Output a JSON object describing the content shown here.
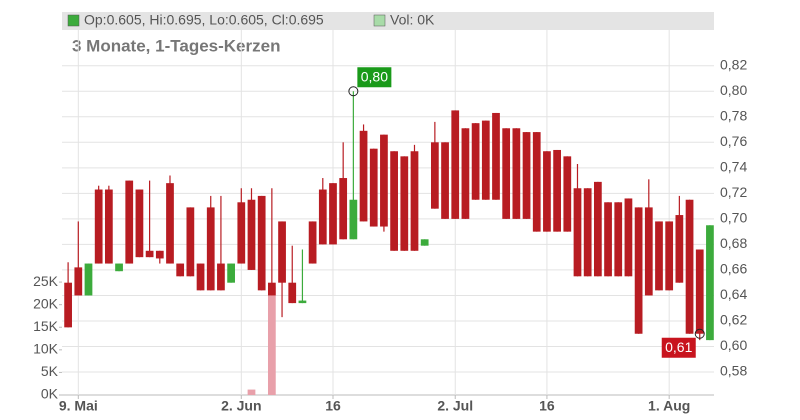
{
  "chart_data": {
    "type": "candlestick",
    "subtitle": "3 Monate, 1-Tages-Kerzen",
    "categories": [
      null,
      "9. Mai",
      null,
      null,
      null,
      null,
      null,
      null,
      null,
      null,
      null,
      null,
      null,
      null,
      null,
      null,
      null,
      "2. Jun",
      null,
      null,
      null,
      null,
      null,
      null,
      null,
      null,
      "16",
      null,
      null,
      null,
      null,
      null,
      null,
      null,
      null,
      null,
      null,
      null,
      "2. Jul",
      null,
      null,
      null,
      null,
      null,
      null,
      null,
      null,
      "16",
      null,
      null,
      null,
      null,
      null,
      null,
      null,
      null,
      null,
      null,
      null,
      "1. Aug",
      null,
      null,
      null,
      null
    ],
    "up_color": "#3cab3c",
    "down_color": "#b81c22",
    "series": [
      {
        "name": "Op:0.605, Hi:0.695, Lo:0.605, Cl:0.695",
        "color": "#3cab3c",
        "open": [
          0.65,
          0.662,
          0.64,
          0.723,
          0.723,
          0.659,
          0.73,
          0.723,
          0.675,
          0.675,
          0.728,
          0.665,
          0.709,
          0.665,
          0.709,
          0.665,
          0.65,
          0.713,
          0.715,
          0.718,
          0.65,
          0.698,
          0.65,
          0.634,
          0.698,
          0.723,
          0.728,
          0.732,
          0.684,
          0.769,
          0.755,
          0.766,
          0.753,
          0.749,
          0.753,
          0.679,
          0.76,
          0.76,
          0.785,
          0.771,
          0.775,
          0.777,
          0.783,
          0.771,
          0.771,
          0.768,
          0.768,
          0.753,
          0.754,
          0.749,
          0.724,
          0.724,
          0.729,
          0.713,
          0.713,
          0.716,
          0.709,
          0.709,
          0.698,
          0.698,
          0.703,
          0.715,
          0.676,
          0.605
        ],
        "high": [
          0.666,
          0.698,
          0.665,
          0.726,
          0.726,
          0.665,
          0.73,
          0.723,
          0.73,
          0.675,
          0.734,
          0.665,
          0.709,
          0.665,
          0.718,
          0.718,
          0.665,
          0.724,
          0.724,
          0.718,
          0.724,
          0.698,
          0.679,
          0.676,
          0.698,
          0.732,
          0.728,
          0.76,
          0.8,
          0.774,
          0.755,
          0.766,
          0.753,
          0.749,
          0.758,
          0.684,
          0.776,
          0.76,
          0.785,
          0.771,
          0.775,
          0.777,
          0.783,
          0.771,
          0.771,
          0.768,
          0.768,
          0.753,
          0.754,
          0.749,
          0.743,
          0.724,
          0.729,
          0.713,
          0.713,
          0.716,
          0.709,
          0.731,
          0.698,
          0.698,
          0.718,
          0.715,
          0.676,
          0.695
        ],
        "low": [
          0.615,
          0.64,
          0.64,
          0.665,
          0.665,
          0.659,
          0.665,
          0.67,
          0.67,
          0.665,
          0.665,
          0.655,
          0.655,
          0.644,
          0.644,
          0.644,
          0.65,
          0.665,
          0.66,
          0.644,
          0.64,
          0.623,
          0.634,
          0.634,
          0.665,
          0.68,
          0.68,
          0.684,
          0.684,
          0.698,
          0.694,
          0.69,
          0.675,
          0.675,
          0.675,
          0.679,
          0.708,
          0.7,
          0.7,
          0.7,
          0.715,
          0.715,
          0.715,
          0.7,
          0.7,
          0.7,
          0.69,
          0.69,
          0.69,
          0.69,
          0.655,
          0.655,
          0.655,
          0.655,
          0.655,
          0.655,
          0.61,
          0.64,
          0.644,
          0.644,
          0.65,
          0.61,
          0.605,
          0.605
        ],
        "close": [
          0.615,
          0.64,
          0.665,
          0.665,
          0.665,
          0.665,
          0.665,
          0.67,
          0.67,
          0.669,
          0.665,
          0.655,
          0.655,
          0.644,
          0.644,
          0.644,
          0.665,
          0.665,
          0.66,
          0.644,
          0.64,
          0.65,
          0.634,
          0.636,
          0.665,
          0.68,
          0.68,
          0.684,
          0.715,
          0.698,
          0.694,
          0.694,
          0.675,
          0.675,
          0.675,
          0.684,
          0.708,
          0.7,
          0.7,
          0.7,
          0.715,
          0.715,
          0.715,
          0.7,
          0.7,
          0.7,
          0.69,
          0.69,
          0.69,
          0.69,
          0.655,
          0.655,
          0.655,
          0.655,
          0.655,
          0.655,
          0.61,
          0.64,
          0.644,
          0.644,
          0.65,
          0.61,
          0.61,
          0.695
        ]
      },
      {
        "name": "Vol: 0K",
        "color": "#a8dba8",
        "axis": "y2",
        "down_color": "#e8a0aa",
        "values": [
          0,
          0,
          0,
          0,
          0,
          0,
          0,
          0,
          0,
          0,
          0,
          0,
          0,
          0,
          0,
          0,
          0,
          0,
          1200,
          0,
          24000,
          0,
          0,
          0,
          0,
          0,
          0,
          0,
          0,
          0,
          0,
          0,
          0,
          0,
          0,
          0,
          0,
          0,
          0,
          0,
          0,
          0,
          0,
          0,
          0,
          0,
          0,
          0,
          0,
          0,
          0,
          0,
          0,
          0,
          0,
          0,
          0,
          0,
          0,
          0,
          0,
          0,
          0,
          0
        ]
      }
    ],
    "ylim": [
      0.562,
      0.848
    ],
    "yticks": [
      {
        "value": 0.58,
        "label": "0,58"
      },
      {
        "value": 0.6,
        "label": "0,60"
      },
      {
        "value": 0.62,
        "label": "0,62"
      },
      {
        "value": 0.64,
        "label": "0,64"
      },
      {
        "value": 0.66,
        "label": "0,66"
      },
      {
        "value": 0.68,
        "label": "0,68"
      },
      {
        "value": 0.7,
        "label": "0,70"
      },
      {
        "value": 0.72,
        "label": "0,72"
      },
      {
        "value": 0.74,
        "label": "0,74"
      },
      {
        "value": 0.76,
        "label": "0,76"
      },
      {
        "value": 0.78,
        "label": "0,78"
      },
      {
        "value": 0.8,
        "label": "0,80"
      },
      {
        "value": 0.82,
        "label": "0,82"
      }
    ],
    "y2lim": [
      0,
      80800
    ],
    "y2ticks": [
      {
        "value": 0,
        "label": "0K"
      },
      {
        "value": 5000,
        "label": "5K"
      },
      {
        "value": 10000,
        "label": "10K"
      },
      {
        "value": 15000,
        "label": "15K"
      },
      {
        "value": 20000,
        "label": "20K"
      },
      {
        "value": 25000,
        "label": "25K"
      }
    ],
    "grid": true,
    "annotations": [
      {
        "text": "0,80",
        "value": 0.8,
        "index": 28,
        "color": "#1a9a1a"
      },
      {
        "text": "0,61",
        "value": 0.61,
        "index": 62,
        "color": "#c8141e"
      }
    ]
  }
}
